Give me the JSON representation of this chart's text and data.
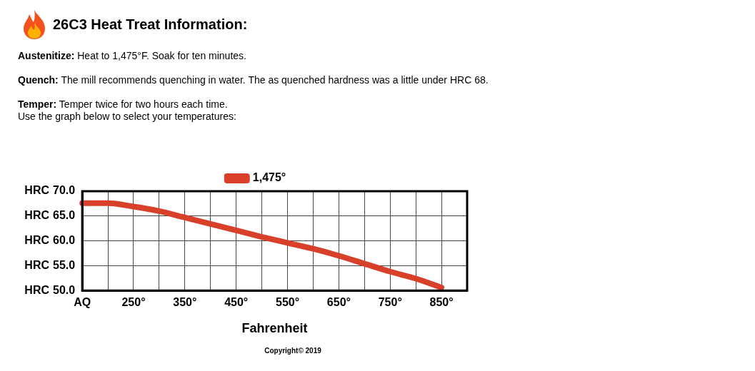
{
  "chart_data": {
    "type": "line",
    "title": "26C3 Heat Treat Information:",
    "annotations": [
      "Austenitize: Heat to 1,475°F. Soak for ten minutes.",
      "Quench: The mill recommends quenching in water. The as quenched hardness was a little under HRC 68.",
      "Temper: Temper twice for two hours each time.\nUse the graph below to select your temperatures:",
      "Copyright© 2019"
    ],
    "xlabel": "Fahrenheit",
    "categories": [
      "AQ",
      null,
      "250°",
      null,
      "350°",
      null,
      "450°",
      null,
      "550°",
      null,
      "650°",
      null,
      "750°",
      null,
      "850°",
      null
    ],
    "series": [
      {
        "name": "1,475°",
        "color": "#d9402a",
        "values": [
          67.6,
          67.6,
          66.9,
          66.0,
          64.7,
          63.4,
          62.1,
          60.8,
          59.6,
          58.4,
          57.0,
          55.4,
          53.8,
          52.4,
          50.6,
          null
        ]
      }
    ],
    "ylim": [
      50,
      70
    ],
    "ylabel": "HRC",
    "yticks": [
      {
        "value": 50,
        "label": "50.0"
      },
      {
        "value": 55,
        "label": "55.0"
      },
      {
        "value": 60,
        "label": "60.0"
      },
      {
        "value": 65,
        "label": "65.0"
      },
      {
        "value": 70,
        "label": "70.0"
      }
    ],
    "grid": true,
    "legend": "top",
    "marker": "none",
    "line_style": "solid"
  }
}
